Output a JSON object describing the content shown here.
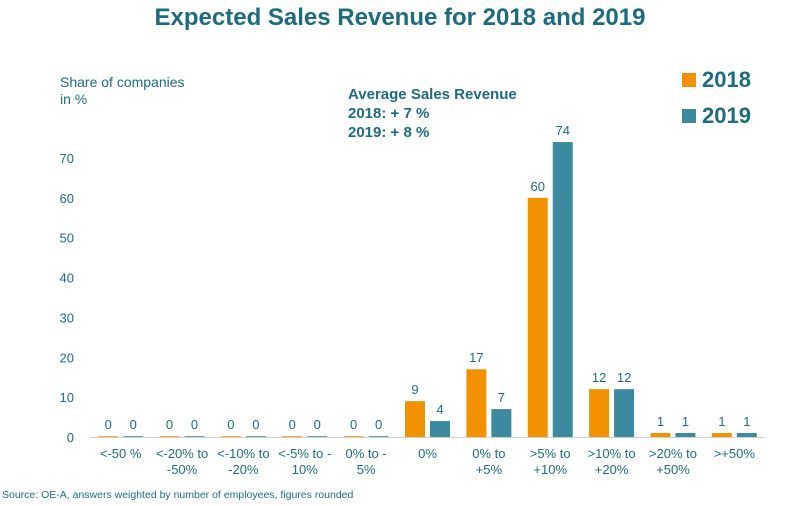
{
  "chart_data": {
    "type": "bar",
    "title": "Expected Sales Revenue for 2018 and 2019",
    "ylabel": "Share of companies in %",
    "annotation": {
      "heading": "Average Sales Revenue",
      "line1": "2018: + 7 %",
      "line2": "2019: + 8 %"
    },
    "source": "Source: OE-A, answers weighted by number of employees, figures rounded",
    "ylim": [
      0,
      80
    ],
    "yticks": [
      0,
      10,
      20,
      30,
      40,
      50,
      60,
      70
    ],
    "grid": false,
    "legend_position": "top-right",
    "categories": [
      [
        "<-50 %"
      ],
      [
        "<-20% to",
        "-50%"
      ],
      [
        "<-10% to",
        "-20%"
      ],
      [
        "<-5% to -",
        "10%"
      ],
      [
        "0% to -",
        "5%"
      ],
      [
        "0%"
      ],
      [
        "0% to",
        "+5%"
      ],
      [
        ">5% to",
        "+10%"
      ],
      [
        ">10% to",
        "+20%"
      ],
      [
        ">20% to",
        "+50%"
      ],
      [
        ">+50%"
      ]
    ],
    "series": [
      {
        "name": "2018",
        "color": "#f39200",
        "values": [
          0,
          0,
          0,
          0,
          0,
          9,
          17,
          60,
          12,
          1,
          1
        ]
      },
      {
        "name": "2019",
        "color": "#3c8aa0",
        "values": [
          0,
          0,
          0,
          0,
          0,
          4,
          7,
          74,
          12,
          1,
          1
        ]
      }
    ]
  }
}
